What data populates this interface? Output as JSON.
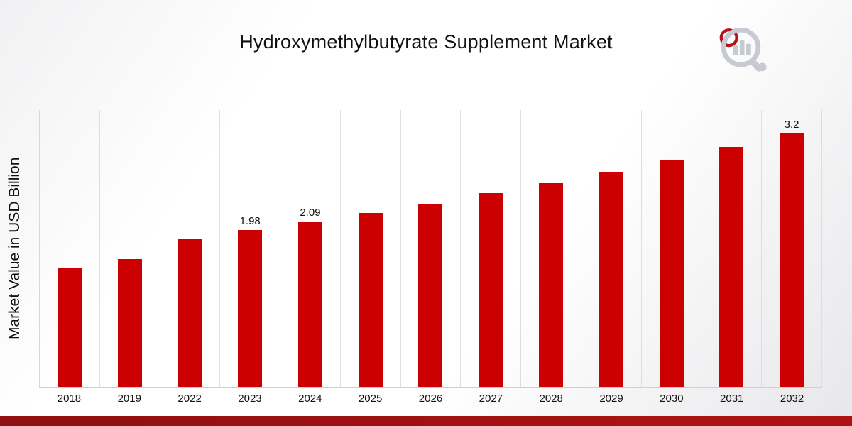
{
  "title": "Hydroxymethylbutyrate Supplement Market",
  "chart_data": {
    "type": "bar",
    "title": "Hydroxymethylbutyrate Supplement Market",
    "xlabel": "",
    "ylabel": "Market Value in USD Billion",
    "ylim": [
      0,
      3.5
    ],
    "grid": "vertical-only",
    "legend": "none",
    "bar_color": "#cc0000",
    "categories": [
      "2018",
      "2019",
      "2022",
      "2023",
      "2024",
      "2025",
      "2026",
      "2027",
      "2028",
      "2029",
      "2030",
      "2031",
      "2032"
    ],
    "values": [
      1.51,
      1.62,
      1.88,
      1.98,
      2.09,
      2.2,
      2.32,
      2.45,
      2.58,
      2.72,
      2.87,
      3.03,
      3.2
    ],
    "data_labels": [
      "",
      "",
      "",
      "1.98",
      "2.09",
      "",
      "",
      "",
      "",
      "",
      "",
      "",
      "3.2"
    ]
  },
  "branding": {
    "logo_icon": "bar-chart-magnifier-logo",
    "logo_gray": "#c7cad0",
    "logo_red": "#b5121b"
  },
  "accent": {
    "bottom_bar_left": "#8f1010",
    "bottom_bar_right": "#b01212"
  }
}
